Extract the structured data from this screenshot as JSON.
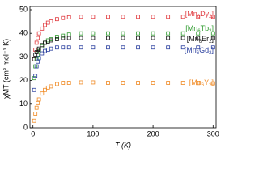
{
  "chart_data": {
    "type": "scatter",
    "x_label": "T (K)",
    "y_label": "χMT (cm³ mol⁻¹ K)",
    "x": [
      2,
      4,
      6,
      8,
      10,
      15,
      20,
      25,
      30,
      40,
      50,
      60,
      80,
      100,
      125,
      150,
      175,
      200,
      225,
      250,
      275,
      300
    ],
    "series": [
      {
        "name": "[Mn6Dy2]",
        "color": "#e0393e",
        "values": [
          29,
          33,
          36,
          38,
          40,
          42,
          43.5,
          44.5,
          45,
          46,
          46.5,
          46.8,
          47,
          47,
          47,
          47,
          47,
          47,
          47,
          47,
          47,
          47
        ]
      },
      {
        "name": "[Mn6Tb2]",
        "color": "#2e9b2e",
        "values": [
          21,
          26,
          29,
          31,
          32.5,
          34.5,
          36,
          37,
          37.5,
          38.5,
          39,
          39.5,
          40,
          40,
          40,
          40,
          40,
          40,
          40,
          40,
          40,
          40
        ]
      },
      {
        "name": "[Mn6Er2]",
        "color": "#111111",
        "values": [
          29,
          31,
          32,
          33,
          33.5,
          35,
          36,
          36.5,
          37,
          37.5,
          38,
          38,
          38,
          38,
          38,
          38,
          38,
          38,
          38,
          38,
          38,
          38
        ]
      },
      {
        "name": "[Mn6Gd2]",
        "color": "#2a3f9e",
        "values": [
          16,
          22,
          26,
          28,
          29.5,
          31.5,
          32.5,
          33,
          33.5,
          34,
          34,
          34,
          34,
          34,
          34,
          34,
          34,
          34,
          34,
          34,
          34,
          34
        ]
      },
      {
        "name": "[Mn6Y2]",
        "color": "#f08a24",
        "values": [
          3,
          6,
          8.5,
          10.5,
          12,
          14.5,
          16,
          17,
          17.5,
          18.5,
          19,
          19,
          19.2,
          19.2,
          19,
          19,
          19,
          19,
          19,
          19,
          18.9,
          18.8
        ]
      }
    ],
    "xlim": [
      -5,
      305
    ],
    "xticks": [
      0,
      100,
      200,
      300
    ],
    "ylim": [
      0,
      50
    ],
    "yticks": [
      0,
      10,
      20,
      30,
      40,
      50
    ]
  }
}
